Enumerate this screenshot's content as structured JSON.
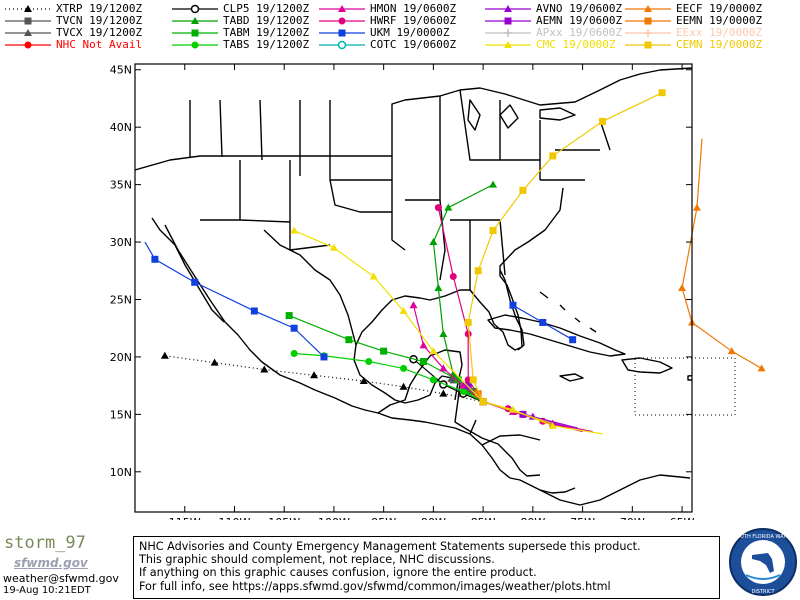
{
  "legend": [
    {
      "label": "XTRP 19/1200Z",
      "color": "#000000",
      "marker": "triangle",
      "dash": "dotted"
    },
    {
      "label": "CLP5 19/1200Z",
      "color": "#000000",
      "marker": "ocircle",
      "dash": "solid"
    },
    {
      "label": "HMON 19/0600Z",
      "color": "#e0009c",
      "marker": "triangle",
      "dash": "solid"
    },
    {
      "label": "AVNO 19/0600Z",
      "color": "#9a00d0",
      "marker": "triangle",
      "dash": "solid"
    },
    {
      "label": "EECF 19/0000Z",
      "color": "#f07800",
      "marker": "triangle",
      "dash": "solid"
    },
    {
      "label": "TVCN 19/1200Z",
      "color": "#555555",
      "marker": "square",
      "dash": "solid"
    },
    {
      "label": "TABD 19/1200Z",
      "color": "#00a000",
      "marker": "triangle",
      "dash": "solid"
    },
    {
      "label": "HWRF 19/0600Z",
      "color": "#e0007c",
      "marker": "circle",
      "dash": "solid"
    },
    {
      "label": "AEMN 19/0600Z",
      "color": "#9a00d0",
      "marker": "square",
      "dash": "solid"
    },
    {
      "label": "EEMN 19/0000Z",
      "color": "#f07800",
      "marker": "square",
      "dash": "solid"
    },
    {
      "label": "TVCX 19/1200Z",
      "color": "#555555",
      "marker": "triangle",
      "dash": "solid"
    },
    {
      "label": "TABM 19/1200Z",
      "color": "#00b000",
      "marker": "square",
      "dash": "solid"
    },
    {
      "label": "UKM  19/0000Z",
      "color": "#1040e0",
      "marker": "square",
      "dash": "solid"
    },
    {
      "label": "APxx 19/0600Z",
      "color": "#c0c0c0",
      "marker": "plus",
      "dash": "solid"
    },
    {
      "label": "EExx 19/0000Z",
      "color": "#ffc8b0",
      "marker": "plus",
      "dash": "solid"
    },
    {
      "label": "NHC Not Avail",
      "color": "#ff0000",
      "marker": "circle",
      "dash": "solid"
    },
    {
      "label": "TABS 19/1200Z",
      "color": "#00d000",
      "marker": "circle",
      "dash": "solid"
    },
    {
      "label": "COTC 19/0600Z",
      "color": "#00b0b0",
      "marker": "ocircle",
      "dash": "solid"
    },
    {
      "label": "CMC  19/0000Z",
      "color": "#f0e000",
      "marker": "triangle",
      "dash": "solid"
    },
    {
      "label": "CEMN 19/0000Z",
      "color": "#f0c800",
      "marker": "square",
      "dash": "solid"
    }
  ],
  "axes": {
    "lat_labels": [
      "45N",
      "40N",
      "35N",
      "30N",
      "25N",
      "20N",
      "15N",
      "10N"
    ],
    "lat_values": [
      45,
      40,
      35,
      30,
      25,
      20,
      15,
      10
    ],
    "lon_labels": [
      "115W",
      "110W",
      "105W",
      "100W",
      "95W",
      "90W",
      "85W",
      "80W",
      "75W",
      "70W",
      "65W"
    ],
    "lon_values": [
      -115,
      -110,
      -105,
      -100,
      -95,
      -90,
      -85,
      -80,
      -75,
      -70,
      -65
    ],
    "lon_range": [
      -120,
      -64
    ],
    "lat_range": [
      6,
      45
    ]
  },
  "tracks": [
    {
      "model": "XTRP",
      "color": "#000000",
      "dash": "dotted",
      "marker": "triangle",
      "points": [
        [
          -85,
          16.1
        ],
        [
          -89,
          16.8
        ],
        [
          -93,
          17.4
        ],
        [
          -97,
          17.9
        ],
        [
          -102,
          18.4
        ],
        [
          -107,
          18.9
        ],
        [
          -112,
          19.5
        ],
        [
          -117,
          20.1
        ]
      ]
    },
    {
      "model": "CLP5",
      "color": "#000000",
      "dash": "solid",
      "marker": "ocircle",
      "points": [
        [
          -85,
          16.1
        ],
        [
          -87,
          16.8
        ],
        [
          -89,
          17.6
        ],
        [
          -92,
          19.8
        ]
      ]
    },
    {
      "model": "TVCN",
      "color": "#555555",
      "dash": "solid",
      "marker": "square",
      "points": [
        [
          -85,
          16.1
        ],
        [
          -86.5,
          17
        ],
        [
          -88,
          18
        ]
      ]
    },
    {
      "model": "TVCX",
      "color": "#555555",
      "dash": "solid",
      "marker": "triangle",
      "points": [
        [
          -85,
          16.1
        ],
        [
          -86.6,
          17.1
        ],
        [
          -88.2,
          18.1
        ]
      ]
    },
    {
      "model": "TABD",
      "color": "#00a000",
      "dash": "solid",
      "marker": "triangle",
      "points": [
        [
          -85,
          16.1
        ],
        [
          -86.5,
          17
        ],
        [
          -88,
          18.5
        ],
        [
          -89,
          22
        ],
        [
          -89.5,
          26
        ],
        [
          -90,
          30
        ],
        [
          -88.5,
          33
        ],
        [
          -84,
          35
        ]
      ]
    },
    {
      "model": "TABM",
      "color": "#00b000",
      "dash": "solid",
      "marker": "square",
      "points": [
        [
          -85,
          16.1
        ],
        [
          -86,
          17
        ],
        [
          -87.5,
          18
        ],
        [
          -91,
          19.6
        ],
        [
          -95,
          20.5
        ],
        [
          -98.5,
          21.5
        ],
        [
          -104.5,
          23.6
        ]
      ]
    },
    {
      "model": "TABS",
      "color": "#00d000",
      "dash": "solid",
      "marker": "circle",
      "points": [
        [
          -85,
          16.1
        ],
        [
          -87,
          17
        ],
        [
          -90,
          18
        ],
        [
          -93,
          19
        ],
        [
          -96.5,
          19.6
        ],
        [
          -101,
          20.1
        ],
        [
          -104,
          20.3
        ]
      ]
    },
    {
      "model": "HMON",
      "color": "#e0009c",
      "dash": "solid",
      "marker": "triangle",
      "points": [
        [
          -74,
          13.5
        ],
        [
          -78,
          14.2
        ],
        [
          -82,
          15.2
        ],
        [
          -85,
          16.1
        ],
        [
          -87,
          17.5
        ],
        [
          -89,
          19
        ],
        [
          -91,
          21
        ],
        [
          -92,
          24.5
        ]
      ]
    },
    {
      "model": "HWRF",
      "color": "#e0007c",
      "dash": "solid",
      "marker": "circle",
      "points": [
        [
          -75,
          13.5
        ],
        [
          -79,
          14.4
        ],
        [
          -82.5,
          15.5
        ],
        [
          -85,
          16.1
        ],
        [
          -86.5,
          18
        ],
        [
          -86.5,
          22
        ],
        [
          -88,
          27
        ],
        [
          -89.5,
          33
        ]
      ]
    },
    {
      "model": "AVNO",
      "color": "#9a00d0",
      "dash": "solid",
      "marker": "triangle",
      "points": [
        [
          -75.5,
          13.8
        ],
        [
          -80,
          14.8
        ],
        [
          -85,
          16.1
        ],
        [
          -86.5,
          17.5
        ]
      ]
    },
    {
      "model": "AEMN",
      "color": "#9a00d0",
      "dash": "solid",
      "marker": "square",
      "points": [
        [
          -77,
          14
        ],
        [
          -81,
          15
        ],
        [
          -85,
          16.1
        ],
        [
          -86.5,
          17.5
        ]
      ]
    },
    {
      "model": "UKM",
      "color": "#1040e0",
      "dash": "solid",
      "marker": "square",
      "points": [
        [
          -119,
          30
        ],
        [
          -118,
          28.5
        ],
        [
          -114,
          26.5
        ],
        [
          -108,
          24
        ],
        [
          -104,
          22.5
        ],
        [
          -101,
          20
        ]
      ]
    },
    {
      "model": "UKM2",
      "color": "#1040e0",
      "dash": "solid",
      "marker": "square",
      "points": [
        [
          -82,
          24.5
        ],
        [
          -79,
          23
        ],
        [
          -76,
          21.5
        ]
      ]
    },
    {
      "model": "EECF",
      "color": "#f07800",
      "dash": "solid",
      "marker": "triangle",
      "points": [
        [
          -63,
          39
        ],
        [
          -63.5,
          33
        ],
        [
          -65,
          26
        ],
        [
          -64,
          23
        ],
        [
          -60,
          20.5
        ],
        [
          -57,
          19
        ]
      ]
    },
    {
      "model": "EEMN",
      "color": "#f07800",
      "dash": "solid",
      "marker": "square",
      "points": [
        [
          -85,
          16.1
        ],
        [
          -85.5,
          16.8
        ]
      ]
    },
    {
      "model": "CMC",
      "color": "#f0e000",
      "dash": "solid",
      "marker": "triangle",
      "points": [
        [
          -73,
          13.3
        ],
        [
          -78,
          14
        ],
        [
          -82,
          15.4
        ],
        [
          -85,
          16.1
        ],
        [
          -90,
          20.5
        ],
        [
          -93,
          24
        ],
        [
          -96,
          27
        ],
        [
          -100,
          29.5
        ],
        [
          -104,
          31
        ]
      ]
    },
    {
      "model": "CEMN",
      "color": "#f0c800",
      "dash": "solid",
      "marker": "square",
      "points": [
        [
          -78,
          14.2
        ],
        [
          -85,
          16.1
        ],
        [
          -86,
          18
        ],
        [
          -86.5,
          23
        ],
        [
          -85.5,
          27.5
        ],
        [
          -84,
          31
        ],
        [
          -81,
          34.5
        ],
        [
          -78,
          37.5
        ],
        [
          -73,
          40.5
        ],
        [
          -67,
          43
        ]
      ]
    }
  ],
  "footer": {
    "brand": "storm_97",
    "brand_sub": "sfwmd.gov",
    "email": "weather@sfwmd.gov",
    "timestamp": "19-Aug 10:21EDT"
  },
  "disclaimer": {
    "line1": "NHC Advisories and County Emergency Management Statements supersede this product.",
    "line2": "This graphic should complement, not replace, NHC discussions.",
    "line3": "If anything on this graphic causes confusion, ignore the entire product.",
    "line4": "For full info, see  https://apps.sfwmd.gov/sfwmd/common/images/weather/plots.html"
  },
  "seal": {
    "text_top": "SOUTH FLORIDA WATER MANAGEMENT",
    "text_bottom": "DISTRICT"
  }
}
